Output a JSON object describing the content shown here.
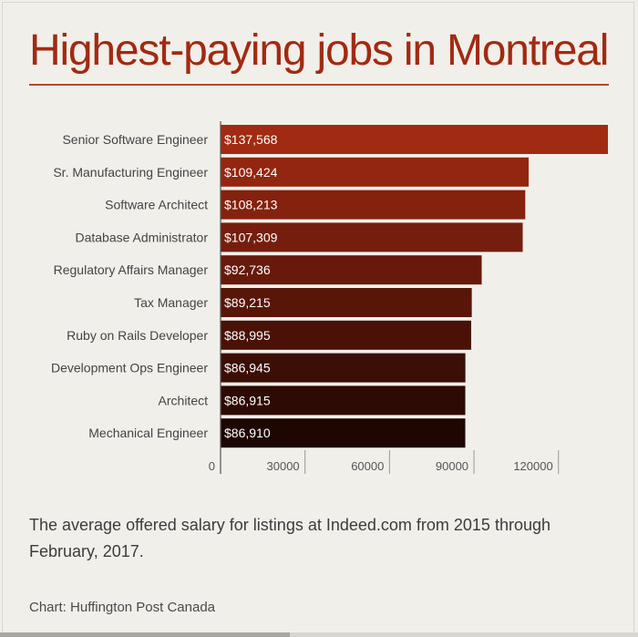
{
  "title": "Highest-paying jobs in Montreal",
  "caption": "The average offered salary for listings at Indeed.com from 2015 through February, 2017.",
  "source": "Chart: Huffington Post Canada",
  "colors": {
    "title": "#a12a12",
    "bar_top": "#a12a12",
    "bar_bottom": "#1e0602"
  },
  "chart_data": {
    "type": "bar",
    "orientation": "horizontal",
    "title": "Highest-paying jobs in Montreal",
    "xlabel": "",
    "ylabel": "",
    "xlim": [
      0,
      150000
    ],
    "xticks": [
      0,
      30000,
      60000,
      90000,
      120000
    ],
    "grid": false,
    "categories": [
      "Senior Software Engineer",
      "Sr. Manufacturing Engineer",
      "Software Architect",
      "Database Administrator",
      "Regulatory Affairs Manager",
      "Tax Manager",
      "Ruby on Rails Developer",
      "Development Ops Engineer",
      "Architect",
      "Mechanical Engineer"
    ],
    "values": [
      137568,
      109424,
      108213,
      107309,
      92736,
      89215,
      88995,
      86945,
      86915,
      86910
    ],
    "value_labels": [
      "$137,568",
      "$109,424",
      "$108,213",
      "$107,309",
      "$92,736",
      "$89,215",
      "$88,995",
      "$86,945",
      "$86,915",
      "$86,910"
    ]
  }
}
